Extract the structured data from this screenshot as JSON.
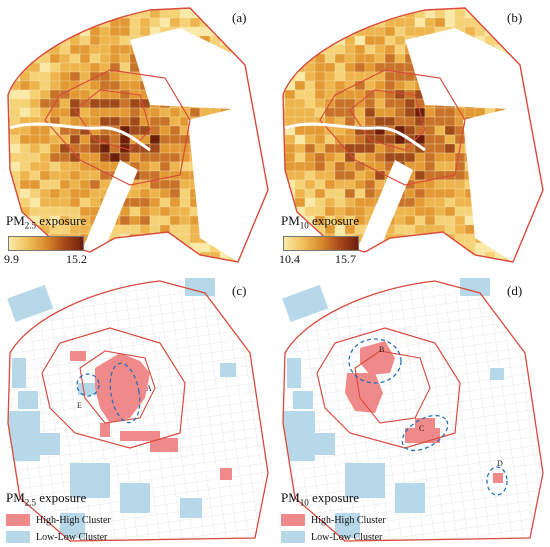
{
  "panels": {
    "a": {
      "label": "(a)"
    },
    "b": {
      "label": "(b)"
    },
    "c": {
      "label": "(c)"
    },
    "d": {
      "label": "(d)"
    }
  },
  "pm25_legend": {
    "title_prefix": "PM",
    "title_sub": "2.5",
    "title_suffix": " exposure",
    "min": "9.9",
    "max": "15.2"
  },
  "pm10_legend": {
    "title_prefix": "PM",
    "title_sub": "10",
    "title_suffix": " exposure",
    "min": "10.4",
    "max": "15.7"
  },
  "cluster_legend_c": {
    "title_prefix": "PM",
    "title_sub": "2.5",
    "title_suffix": " exposure",
    "high": "High-High Cluster",
    "low": "Low-Low Cluster"
  },
  "cluster_legend_d": {
    "title_prefix": "PM",
    "title_sub": "10",
    "title_suffix": " exposure",
    "high": "High-High Cluster",
    "low": "Low-Low Cluster"
  },
  "markers_c": {
    "a": "A",
    "e": "E"
  },
  "markers_d": {
    "b": "B",
    "c": "C",
    "d": "D"
  },
  "colors": {
    "ramp_low": "#fbe9a8",
    "ramp_mid": "#e3a33c",
    "ramp_high": "#6e1f0a",
    "boundary": "#d84a3c",
    "high_high": "#f08a8a",
    "low_low": "#b7d8e8",
    "ellipse": "#2a6fb8"
  }
}
